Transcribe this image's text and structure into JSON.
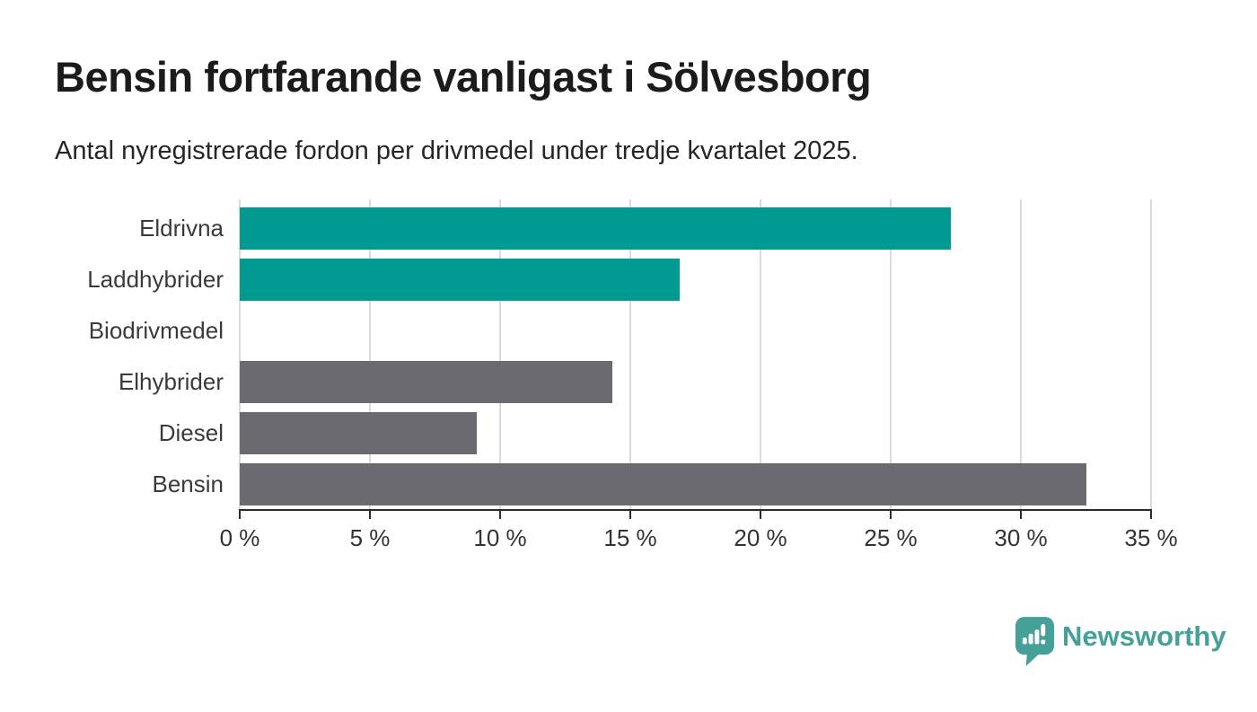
{
  "page": {
    "background": "#FFFFFF"
  },
  "chart_data": {
    "type": "bar",
    "orientation": "horizontal",
    "title": "Bensin fortfarande vanligast i Sölvesborg",
    "subtitle": "Antal nyregistrerade fordon per drivmedel under tredje kvartalet 2025.",
    "categories": [
      "Eldrivna",
      "Laddhybrider",
      "Biodrivmedel",
      "Elhybrider",
      "Diesel",
      "Bensin"
    ],
    "values": [
      27.3,
      16.9,
      0,
      14.3,
      9.1,
      32.5
    ],
    "series_colors": [
      "#009A93",
      "#009A93",
      "#009A93",
      "#6B6A70",
      "#6B6A70",
      "#6B6A70"
    ],
    "xlabel": "",
    "ylabel": "",
    "xlim": [
      0,
      35
    ],
    "x_tick_labels": [
      "0 %",
      "5 %",
      "10 %",
      "15 %",
      "20 %",
      "25 %",
      "30 %",
      "35 %"
    ],
    "grid": true,
    "legend_position": "none"
  },
  "colors": {
    "accent_teal": "#009A93",
    "bar_gray": "#6B6A70",
    "gridline": "#DBDBDB",
    "axis": "#2B2B2B",
    "title_text": "#1B1B1B",
    "label_text": "#3A3A3A",
    "logo_teal": "#45A09A"
  },
  "logo": {
    "label": "Newsworthy",
    "icon": "newsworthy-pin-barchart-icon"
  }
}
